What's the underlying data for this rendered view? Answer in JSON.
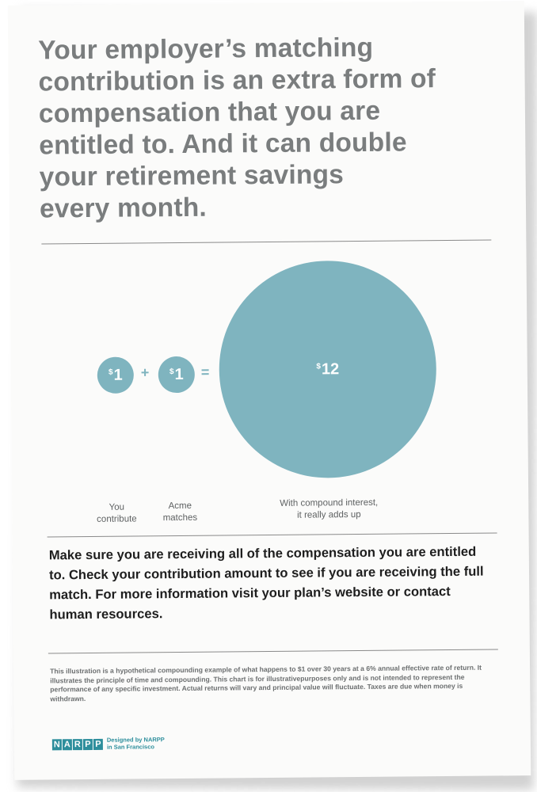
{
  "headline": "Your employer’s matching\ncontribution is an extra form of\ncompensation that you are\nentitled to. And it can double\nyour retirement savings\nevery month.",
  "illustration": {
    "currency_symbol": "$",
    "you": {
      "amount": "1",
      "label": "You\ncontribute"
    },
    "plus": "+",
    "employer": {
      "amount": "1",
      "label": "Acme\nmatches"
    },
    "equals": "=",
    "result": {
      "amount": "12",
      "label": "With compound interest,\nit really adds up"
    },
    "color": "#7fb4bf"
  },
  "body": "Make sure you are receiving all of the compensation you are entitled to. Check your contribution amount to see if you are receiving the full match. For more information visit your plan’s website or contact human resources.",
  "disclaimer": "This illustration is a hypothetical compounding example of what happens to $1 over 30 years at a 6% annual effective rate of return. It illustrates the principle of time and compounding. This chart is for illustrativepurposes only and is not intended to represent the performance of any specific investment. Actual returns will vary and principal value will fluctuate. Taxes are due when money is withdrawn.",
  "footer": {
    "logo_letters": [
      "N",
      "A",
      "R",
      "P",
      "P"
    ],
    "credit": "Designed by NARPP\nin San Francisco",
    "brand_color": "#2d8e9c"
  }
}
